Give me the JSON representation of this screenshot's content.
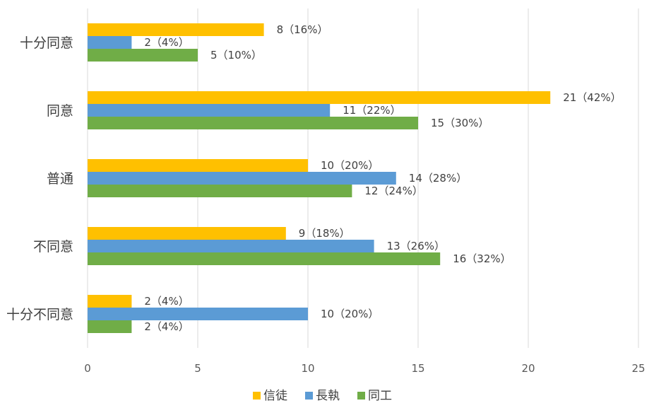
{
  "chart_data": {
    "type": "bar",
    "orientation": "horizontal",
    "categories": [
      "十分同意",
      "同意",
      "普通",
      "不同意",
      "十分不同意"
    ],
    "series": [
      {
        "name": "信徒",
        "color": "#ffc000",
        "values": [
          8,
          21,
          10,
          9,
          2
        ],
        "labels": [
          "8（16%）",
          "21（42%）",
          "10（20%）",
          "9（18%）",
          "2（4%）"
        ]
      },
      {
        "name": "長執",
        "color": "#5b9bd5",
        "values": [
          2,
          11,
          14,
          13,
          10
        ],
        "labels": [
          "2（4%）",
          "11（22%）",
          "14（28%）",
          "13（26%）",
          "10（20%）"
        ]
      },
      {
        "name": "同工",
        "color": "#70ad47",
        "values": [
          5,
          15,
          12,
          16,
          2
        ],
        "labels": [
          "5（10%）",
          "15（30%）",
          "12（24%）",
          "16（32%）",
          "2（4%）"
        ]
      }
    ],
    "xlim": [
      0,
      25
    ],
    "xticks": [
      0,
      5,
      10,
      15,
      20,
      25
    ],
    "xtick_labels": [
      "0",
      "5",
      "10",
      "15",
      "20",
      "25"
    ],
    "grid": true,
    "legend_position": "bottom",
    "title": "",
    "xlabel": "",
    "ylabel": ""
  }
}
